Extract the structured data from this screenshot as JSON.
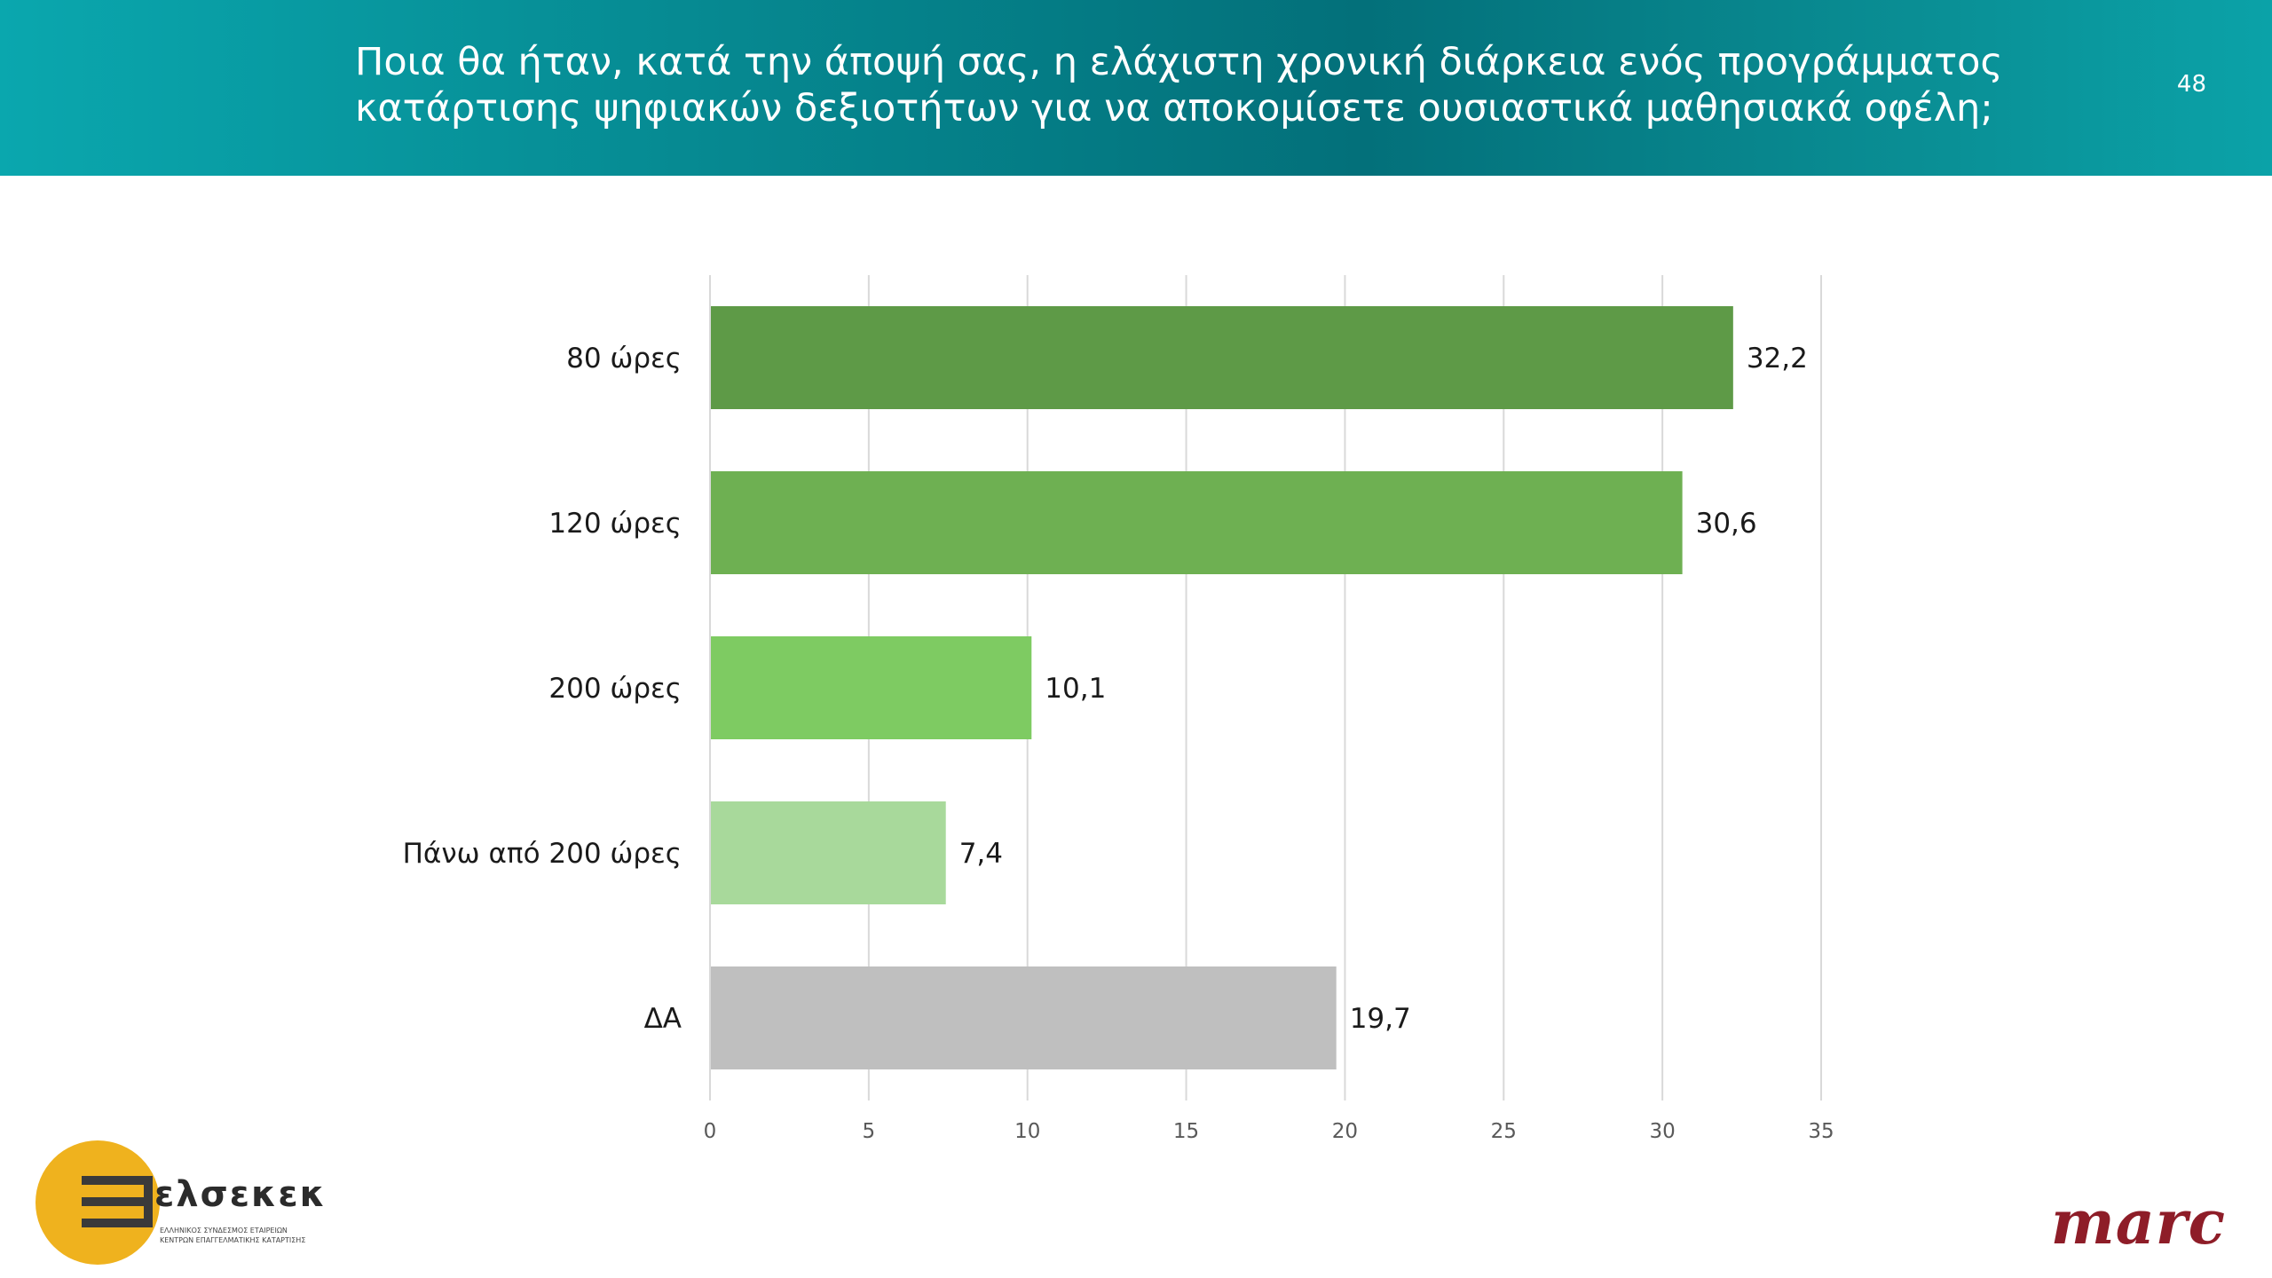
{
  "header": {
    "title_line1": "Ποια θα ήταν, κατά την άποψή σας, η ελάχιστη χρονική διάρκεια ενός προγράμματος",
    "title_line2": "κατάρτισης ψηφιακών δεξιοτήτων για να αποκομίσετε ουσιαστικά μαθησιακά οφέλη;",
    "page_number": "48"
  },
  "chart_data": {
    "type": "bar",
    "orientation": "horizontal",
    "categories": [
      "80 ώρες",
      "120 ώρες",
      "200 ώρες",
      "Πάνω από 200 ώρες",
      "ΔΑ"
    ],
    "values": [
      32.2,
      30.6,
      10.1,
      7.4,
      19.7
    ],
    "value_labels": [
      "32,2",
      "30,6",
      "10,1",
      "7,4",
      "19,7"
    ],
    "colors": [
      "#5e9a47",
      "#6eb052",
      "#7ecb62",
      "#a8d99b",
      "#bfbfbf"
    ],
    "xlim": [
      0,
      35
    ],
    "xticks": [
      0,
      5,
      10,
      15,
      20,
      25,
      30,
      35
    ],
    "grid": "vertical",
    "legend": "none"
  },
  "logos": {
    "left_name": "ελσεκεκ",
    "left_sub_line1": "ΕΛΛΗΝΙΚΟΣ ΣΥΝΔΕΣΜΟΣ ΕΤΑΙΡΕΙΩΝ",
    "left_sub_line2": "ΚΕΝΤΡΩΝ ΕΠΑΓΓΕΛΜΑΤΙΚΗΣ ΚΑΤΑΡΤΙΣΗΣ",
    "left_circle_color": "#efb21e",
    "right_name": "marc",
    "right_color": "#8e1d28"
  }
}
